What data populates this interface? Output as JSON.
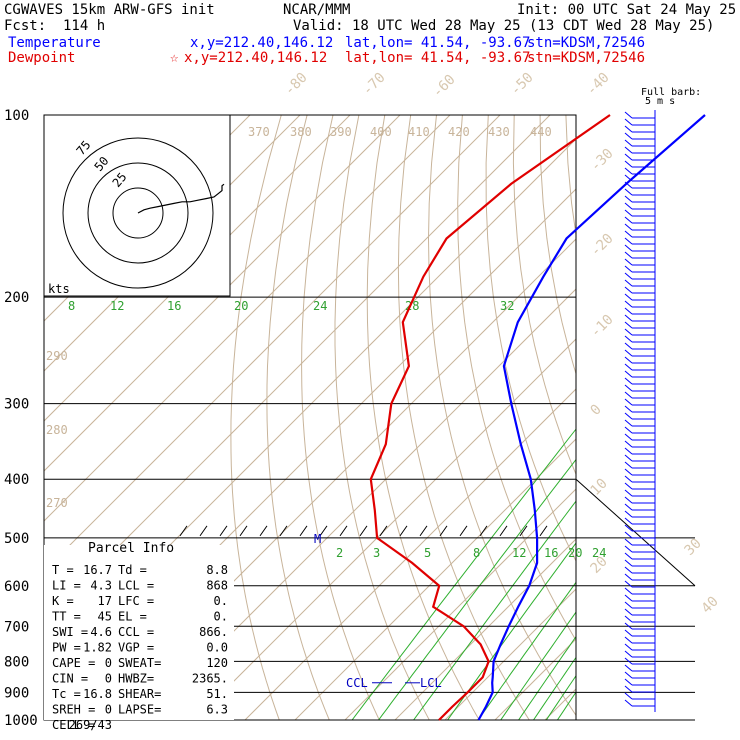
{
  "header": {
    "model": "CGWAVES 15km ARW-GFS init",
    "agency": "NCAR/MMM",
    "init": "Init: 00 UTC Sat 24 May 25",
    "fcst": "Fcst:  114 h",
    "valid": "Valid: 18 UTC Wed 28 May 25 (13 CDT Wed 28 May 25)",
    "temp_label": "Temperature",
    "temp_xy": "x,y=212.40,146.12",
    "temp_latlon": "lat,lon= 41.54, -93.67",
    "temp_stn": "stn=KDSM,72546",
    "dew_label": "Dewpoint",
    "dew_xy": "x,y=212.40,146.12",
    "dew_latlon": "lat,lon= 41.54, -93.67",
    "dew_stn": "stn=KDSM,72546",
    "barb_note1": "Full barb:",
    "barb_note2": "5 m s"
  },
  "parcel_info": {
    "title": "Parcel Info",
    "rows": [
      [
        "T  =",
        "16.7",
        "Td =",
        "8.8"
      ],
      [
        "LI =",
        "4.3",
        "LCL =",
        "868"
      ],
      [
        "K  =",
        "17",
        "LFC =",
        "0."
      ],
      [
        "TT =",
        "45",
        "EL  =",
        "0."
      ],
      [
        "SWI =",
        "4.6",
        "CCL =",
        "866."
      ],
      [
        "PW =",
        "1.82",
        "VGP =",
        "0.0"
      ],
      [
        "CAPE =",
        "0",
        "SWEAT=",
        "120"
      ],
      [
        "CIN =",
        "0",
        "HWBZ=",
        "2365."
      ],
      [
        "Tc =",
        "16.8",
        "SHEAR=",
        "51."
      ],
      [
        "SREH =",
        "0",
        "LAPSE=",
        "6.3"
      ],
      [
        "CELL =",
        "269/43",
        "",
        ""
      ]
    ]
  },
  "hodograph": {
    "ring_labels": [
      "75",
      "50",
      "25"
    ],
    "units": "kts"
  },
  "markers": {
    "ccl": "CCL",
    "lcl": "LCL",
    "m": "M"
  },
  "chart_data": {
    "type": "line",
    "skew_t": true,
    "y_axis": {
      "label": "",
      "scale": "log",
      "unit": "hPa",
      "ticks": [
        100,
        200,
        300,
        400,
        500,
        600,
        700,
        800,
        900,
        1000
      ]
    },
    "isotherm_labels": [
      -80,
      -70,
      -60,
      -50,
      -40,
      -30,
      -20,
      -10,
      0,
      10,
      20,
      30,
      40
    ],
    "theta_labels": [
      370,
      380,
      390,
      400,
      410,
      420,
      430,
      440,
      290,
      280,
      270
    ],
    "mixing_ratio_labels_upper": [
      8,
      12,
      16,
      20,
      24,
      28,
      32
    ],
    "mixing_ratio_labels_lower": [
      2,
      3,
      5,
      8,
      12,
      16,
      20,
      24
    ],
    "series": [
      {
        "name": "Temperature",
        "color": "#0000ff",
        "points": [
          [
            100,
            -59
          ],
          [
            130,
            -61
          ],
          [
            160,
            -62
          ],
          [
            185,
            -59
          ],
          [
            220,
            -55
          ],
          [
            260,
            -49
          ],
          [
            300,
            -40
          ],
          [
            350,
            -30
          ],
          [
            400,
            -21
          ],
          [
            450,
            -14
          ],
          [
            500,
            -8
          ],
          [
            550,
            -3
          ],
          [
            600,
            0
          ],
          [
            650,
            2
          ],
          [
            700,
            4
          ],
          [
            750,
            6
          ],
          [
            800,
            8
          ],
          [
            850,
            11
          ],
          [
            868,
            12
          ],
          [
            900,
            14
          ],
          [
            950,
            15.5
          ],
          [
            1000,
            16.7
          ]
        ]
      },
      {
        "name": "Dewpoint",
        "color": "#e00000",
        "points": [
          [
            100,
            -78
          ],
          [
            130,
            -84
          ],
          [
            160,
            -86
          ],
          [
            185,
            -83
          ],
          [
            220,
            -78
          ],
          [
            260,
            -68
          ],
          [
            300,
            -64
          ],
          [
            350,
            -57
          ],
          [
            400,
            -53
          ],
          [
            450,
            -46
          ],
          [
            500,
            -40
          ],
          [
            550,
            -28
          ],
          [
            600,
            -18
          ],
          [
            650,
            -15
          ],
          [
            700,
            -5
          ],
          [
            750,
            2
          ],
          [
            800,
            7
          ],
          [
            850,
            9
          ],
          [
            900,
            9
          ],
          [
            950,
            8.8
          ],
          [
            1000,
            8.8
          ]
        ]
      }
    ],
    "hodograph_trace": [
      [
        0,
        0
      ],
      [
        3,
        -2
      ],
      [
        6,
        -3
      ],
      [
        10,
        -4
      ],
      [
        14,
        -5
      ],
      [
        18,
        -6
      ],
      [
        22,
        -7
      ],
      [
        26,
        -7
      ],
      [
        30,
        -8
      ],
      [
        34,
        -9
      ],
      [
        38,
        -10
      ],
      [
        40,
        -12
      ],
      [
        42,
        -14
      ],
      [
        42,
        -17
      ],
      [
        43,
        -18
      ]
    ]
  }
}
